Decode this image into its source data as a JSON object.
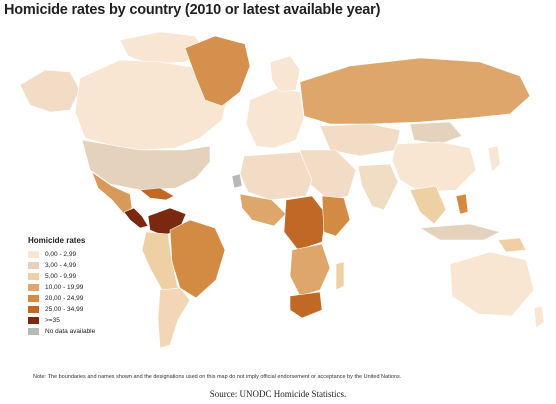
{
  "title": "Homicide rates by country (2010 or latest available year)",
  "legend": {
    "title": "Homicide rates",
    "items": [
      {
        "label": "0,00 - 2,99",
        "color": "#f8e6d3"
      },
      {
        "label": "3,00 - 4,99",
        "color": "#e4d2bd"
      },
      {
        "label": "5,00 - 9,99",
        "color": "#efcfa4"
      },
      {
        "label": "10,00 - 19,99",
        "color": "#dea66a"
      },
      {
        "label": "20,00 - 24,99",
        "color": "#d38a42"
      },
      {
        "label": "25,00 - 34,99",
        "color": "#c26827"
      },
      {
        "label": ">=35",
        "color": "#7a2810"
      },
      {
        "label": "No data available",
        "color": "#b8b8b8"
      }
    ]
  },
  "note": "Note: The boundaries and names shown and the designations used on this map do not imply official endorsement or acceptance by the United Nations.",
  "source": "Source: UNODC Homicide Statistics."
}
